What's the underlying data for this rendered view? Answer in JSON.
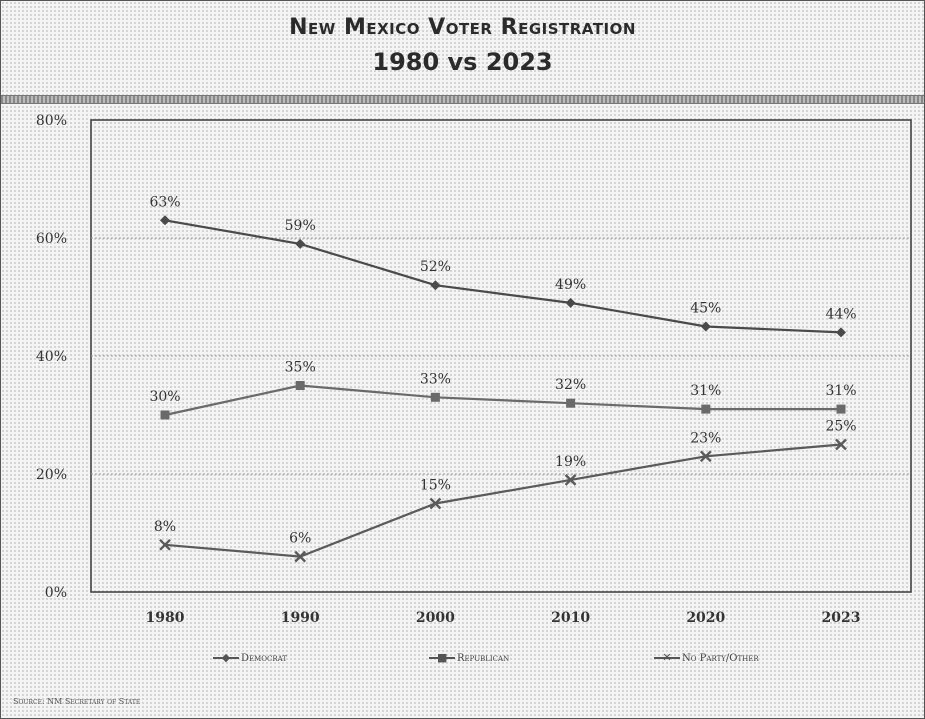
{
  "title_line1": "New Mexico Voter Registration",
  "title_line2": "1980 vs 2023",
  "source": "Source: NM Secretary of State",
  "chart_data": {
    "type": "line",
    "title": "New Mexico Voter Registration 1980 vs 2023",
    "x": [
      "1980",
      "1990",
      "2000",
      "2010",
      "2020",
      "2023"
    ],
    "ylim": [
      0,
      80
    ],
    "yticks": [
      "0%",
      "20%",
      "40%",
      "60%",
      "80%"
    ],
    "grid": true,
    "legend_position": "bottom",
    "series": [
      {
        "name": "Democrat",
        "values": [
          63,
          59,
          52,
          49,
          45,
          44
        ],
        "labels": [
          "63%",
          "59%",
          "52%",
          "49%",
          "45%",
          "44%"
        ],
        "marker": "diamond",
        "color": "#4a4a4a"
      },
      {
        "name": "Republican",
        "values": [
          30,
          35,
          33,
          32,
          31,
          31
        ],
        "labels": [
          "30%",
          "35%",
          "33%",
          "32%",
          "31%",
          "31%"
        ],
        "marker": "square",
        "color": "#6a6a6a"
      },
      {
        "name": "No Party/Other",
        "values": [
          8,
          6,
          15,
          19,
          23,
          25
        ],
        "labels": [
          "8%",
          "6%",
          "15%",
          "19%",
          "23%",
          "25%"
        ],
        "marker": "x",
        "color": "#5a5a5a"
      }
    ]
  }
}
